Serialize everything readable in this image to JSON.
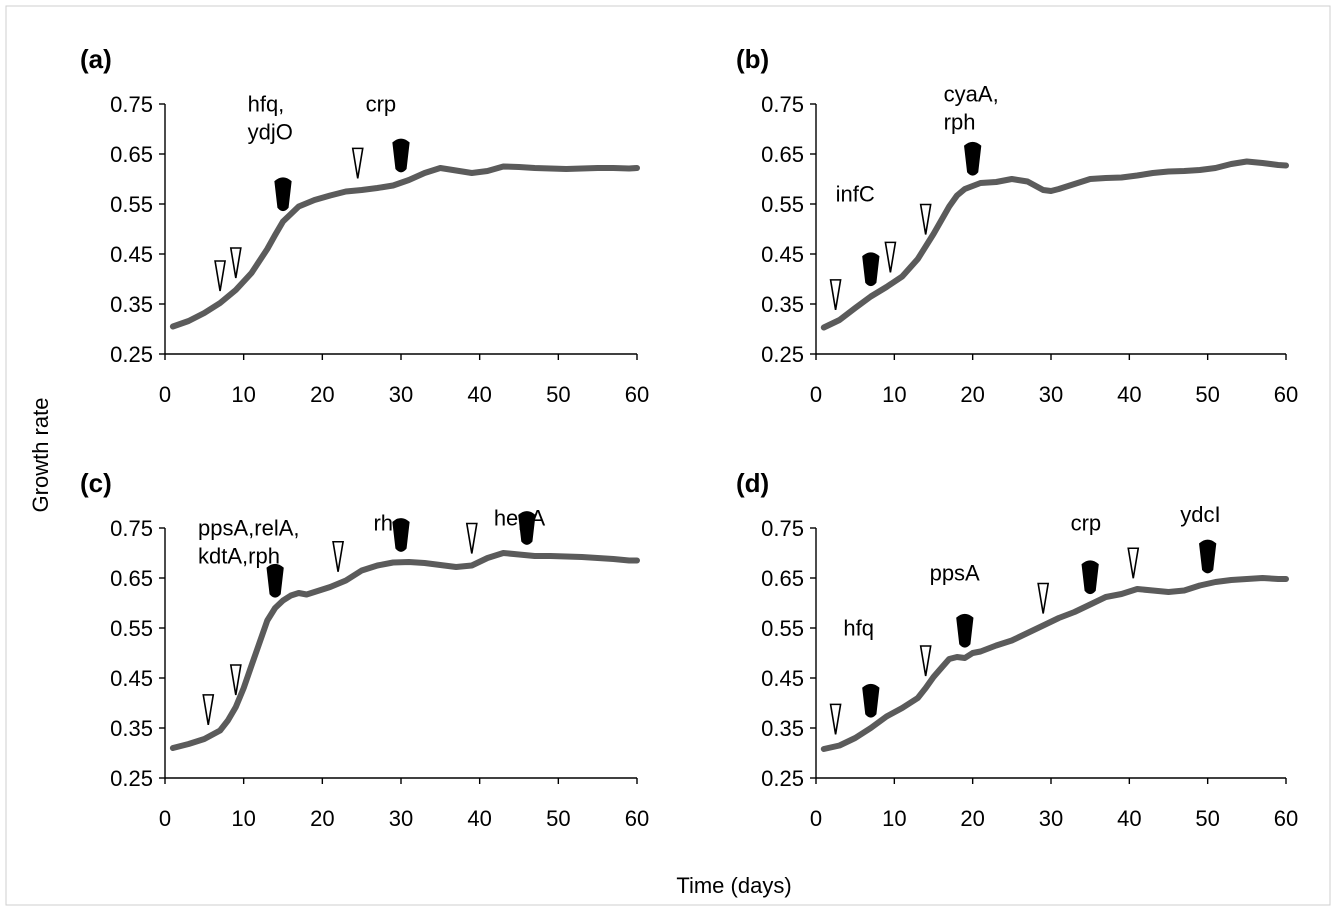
{
  "chart_data": [
    {
      "type": "line",
      "panel": "(a)",
      "xlim": [
        0,
        60
      ],
      "ylim": [
        0.25,
        0.75
      ],
      "xticks": [
        "0",
        "10",
        "20",
        "30",
        "40",
        "50",
        "60"
      ],
      "yticks": [
        "0.25",
        "0.35",
        "0.45",
        "0.55",
        "0.65",
        "0.75"
      ],
      "x": [
        1,
        3,
        5,
        7,
        9,
        11,
        13,
        14,
        15,
        17,
        19,
        21,
        23,
        25,
        27,
        29,
        31,
        33,
        35,
        37,
        39,
        41,
        43,
        45,
        47,
        49,
        51,
        53,
        55,
        57,
        59,
        60
      ],
      "y": [
        0.305,
        0.316,
        0.332,
        0.352,
        0.378,
        0.412,
        0.46,
        0.488,
        0.515,
        0.545,
        0.558,
        0.567,
        0.575,
        0.578,
        0.582,
        0.587,
        0.598,
        0.612,
        0.622,
        0.617,
        0.612,
        0.616,
        0.625,
        0.624,
        0.622,
        0.621,
        0.62,
        0.621,
        0.622,
        0.622,
        0.621,
        0.622
      ],
      "markers": [
        {
          "x": 7,
          "kind": "open"
        },
        {
          "x": 9,
          "kind": "open"
        },
        {
          "x": 15,
          "kind": "filled"
        },
        {
          "x": 24.5,
          "kind": "open"
        },
        {
          "x": 30,
          "kind": "filled"
        }
      ],
      "annotations": [
        {
          "lines": [
            "hfq,",
            "ydjO"
          ],
          "x": 10.5,
          "y": 0.735
        },
        {
          "lines": [
            "crp"
          ],
          "x": 25.5,
          "y": 0.735
        }
      ]
    },
    {
      "type": "line",
      "panel": "(b)",
      "xlim": [
        0,
        60
      ],
      "ylim": [
        0.25,
        0.75
      ],
      "xticks": [
        "0",
        "10",
        "20",
        "30",
        "40",
        "50",
        "60"
      ],
      "yticks": [
        "0.25",
        "0.35",
        "0.45",
        "0.55",
        "0.65",
        "0.75"
      ],
      "x": [
        1,
        3,
        5,
        7,
        9,
        11,
        13,
        15,
        17,
        18,
        19,
        21,
        23,
        25,
        27,
        29,
        30,
        31,
        33,
        35,
        37,
        39,
        41,
        43,
        45,
        47,
        49,
        51,
        53,
        55,
        57,
        59,
        60
      ],
      "y": [
        0.303,
        0.318,
        0.342,
        0.365,
        0.384,
        0.405,
        0.44,
        0.49,
        0.545,
        0.567,
        0.58,
        0.592,
        0.594,
        0.6,
        0.595,
        0.578,
        0.576,
        0.58,
        0.59,
        0.6,
        0.602,
        0.603,
        0.607,
        0.612,
        0.615,
        0.616,
        0.618,
        0.622,
        0.63,
        0.635,
        0.632,
        0.628,
        0.627
      ],
      "markers": [
        {
          "x": 2.5,
          "kind": "open"
        },
        {
          "x": 7,
          "kind": "filled"
        },
        {
          "x": 9.5,
          "kind": "open"
        },
        {
          "x": 14,
          "kind": "open"
        },
        {
          "x": 20,
          "kind": "filled"
        }
      ],
      "annotations": [
        {
          "lines": [
            "infC"
          ],
          "x": 2.5,
          "y": 0.555
        },
        {
          "lines": [
            "cyaA,",
            "rph"
          ],
          "x": 16.3,
          "y": 0.755
        }
      ]
    },
    {
      "type": "line",
      "panel": "(c)",
      "xlim": [
        0,
        60
      ],
      "ylim": [
        0.25,
        0.75
      ],
      "xticks": [
        "0",
        "10",
        "20",
        "30",
        "40",
        "50",
        "60"
      ],
      "yticks": [
        "0.25",
        "0.35",
        "0.45",
        "0.55",
        "0.65",
        "0.75"
      ],
      "x": [
        1,
        3,
        5,
        7,
        8,
        9,
        10,
        11,
        12,
        13,
        14,
        15,
        16,
        17,
        18,
        19,
        21,
        23,
        25,
        27,
        29,
        31,
        33,
        35,
        37,
        39,
        41,
        43,
        45,
        47,
        49,
        51,
        53,
        55,
        57,
        59,
        60
      ],
      "y": [
        0.31,
        0.318,
        0.328,
        0.345,
        0.365,
        0.392,
        0.43,
        0.475,
        0.52,
        0.565,
        0.59,
        0.605,
        0.615,
        0.62,
        0.617,
        0.622,
        0.632,
        0.645,
        0.665,
        0.675,
        0.681,
        0.682,
        0.68,
        0.676,
        0.672,
        0.675,
        0.69,
        0.7,
        0.697,
        0.694,
        0.694,
        0.693,
        0.692,
        0.69,
        0.688,
        0.685,
        0.685
      ],
      "markers": [
        {
          "x": 5.5,
          "kind": "open"
        },
        {
          "x": 9,
          "kind": "open"
        },
        {
          "x": 14,
          "kind": "filled"
        },
        {
          "x": 22,
          "kind": "open"
        },
        {
          "x": 30,
          "kind": "filled"
        },
        {
          "x": 39,
          "kind": "open"
        },
        {
          "x": 46,
          "kind": "filled"
        }
      ],
      "annotations": [
        {
          "lines": [
            "ppsA,relA,",
            "kdtA,rph"
          ],
          "x": 4.2,
          "y": 0.735
        },
        {
          "lines": [
            "rho"
          ],
          "x": 26.5,
          "y": 0.745
        },
        {
          "lines": [
            "hepA"
          ],
          "x": 41.8,
          "y": 0.755
        }
      ]
    },
    {
      "type": "line",
      "panel": "(d)",
      "xlim": [
        0,
        60
      ],
      "ylim": [
        0.25,
        0.75
      ],
      "xticks": [
        "0",
        "10",
        "20",
        "30",
        "40",
        "50",
        "60"
      ],
      "yticks": [
        "0.25",
        "0.35",
        "0.45",
        "0.55",
        "0.65",
        "0.75"
      ],
      "x": [
        1,
        3,
        5,
        7,
        9,
        11,
        13,
        14,
        15,
        16,
        17,
        18,
        19,
        20,
        21,
        23,
        25,
        27,
        29,
        31,
        33,
        35,
        37,
        39,
        41,
        43,
        45,
        47,
        49,
        51,
        53,
        55,
        57,
        59,
        60
      ],
      "y": [
        0.308,
        0.315,
        0.33,
        0.35,
        0.373,
        0.39,
        0.41,
        0.43,
        0.452,
        0.47,
        0.488,
        0.492,
        0.49,
        0.5,
        0.503,
        0.515,
        0.525,
        0.54,
        0.555,
        0.57,
        0.582,
        0.597,
        0.612,
        0.618,
        0.628,
        0.625,
        0.622,
        0.625,
        0.635,
        0.642,
        0.646,
        0.648,
        0.65,
        0.648,
        0.648
      ],
      "markers": [
        {
          "x": 2.5,
          "kind": "open"
        },
        {
          "x": 7,
          "kind": "filled"
        },
        {
          "x": 14,
          "kind": "open"
        },
        {
          "x": 19,
          "kind": "filled"
        },
        {
          "x": 29,
          "kind": "open"
        },
        {
          "x": 35,
          "kind": "filled"
        },
        {
          "x": 40.5,
          "kind": "open"
        },
        {
          "x": 50,
          "kind": "filled"
        }
      ],
      "annotations": [
        {
          "lines": [
            "hfq"
          ],
          "x": 3.5,
          "y": 0.535
        },
        {
          "lines": [
            "ppsA"
          ],
          "x": 14.5,
          "y": 0.645
        },
        {
          "lines": [
            "crp"
          ],
          "x": 32.5,
          "y": 0.745
        },
        {
          "lines": [
            "ydcI"
          ],
          "x": 46.5,
          "y": 0.762
        }
      ]
    }
  ],
  "shared_axes": {
    "xlabel": "Time (days)",
    "ylabel": "Growth rate"
  }
}
